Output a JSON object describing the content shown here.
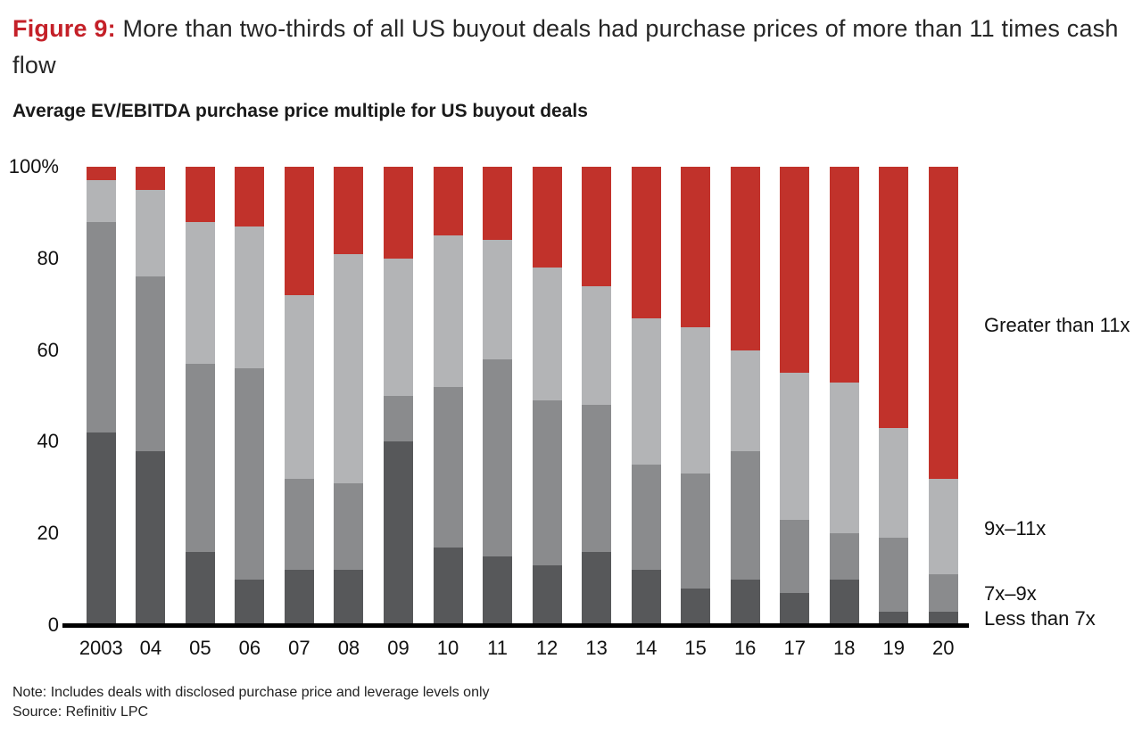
{
  "figure": {
    "label": "Figure 9:",
    "title": "More than two-thirds of all US buyout deals had purchase prices of more than 11 times cash flow"
  },
  "subtitle": "Average EV/EBITDA purchase price multiple for US buyout deals",
  "note": "Note: Includes deals with disclosed purchase price and leverage levels only",
  "source": "Source: Refinitiv LPC",
  "colors": {
    "figure_label_red": "#c42028",
    "bar_red": "#c1322b",
    "dark_gray": "#57585a",
    "medium_gray": "#8a8b8d",
    "light_gray": "#b3b4b6",
    "axis_black": "#000000"
  },
  "chart_data": {
    "type": "bar",
    "stacked": true,
    "grid": false,
    "legend_position": "right",
    "title": "Average EV/EBITDA purchase price multiple for US buyout deals",
    "xlabel": "",
    "ylabel": "",
    "ylim": [
      0,
      100
    ],
    "y_ticks": [
      {
        "label": "100%",
        "value": 100
      },
      {
        "label": "80",
        "value": 80
      },
      {
        "label": "60",
        "value": 60
      },
      {
        "label": "40",
        "value": 40
      },
      {
        "label": "20",
        "value": 20
      },
      {
        "label": "0",
        "value": 0
      }
    ],
    "categories": [
      "2003",
      "04",
      "05",
      "06",
      "07",
      "08",
      "09",
      "10",
      "11",
      "12",
      "13",
      "14",
      "15",
      "16",
      "17",
      "18",
      "19",
      "20"
    ],
    "series": [
      {
        "name": "Less than 7x",
        "color_key": "dark_gray",
        "values": [
          42,
          38,
          16,
          10,
          12,
          12,
          40,
          17,
          15,
          13,
          16,
          12,
          8,
          10,
          7,
          10,
          3,
          3
        ]
      },
      {
        "name": "7x–9x",
        "color_key": "medium_gray",
        "values": [
          46,
          38,
          41,
          46,
          20,
          19,
          10,
          35,
          43,
          36,
          32,
          23,
          25,
          28,
          16,
          10,
          16,
          8
        ]
      },
      {
        "name": "9x–11x",
        "color_key": "light_gray",
        "values": [
          9,
          19,
          31,
          31,
          40,
          50,
          30,
          33,
          26,
          29,
          26,
          32,
          32,
          22,
          32,
          33,
          24,
          21
        ]
      },
      {
        "name": "Greater than 11x",
        "color_key": "bar_red",
        "values": [
          3,
          5,
          12,
          13,
          28,
          19,
          20,
          15,
          16,
          22,
          26,
          33,
          35,
          40,
          45,
          47,
          57,
          68
        ]
      }
    ]
  }
}
